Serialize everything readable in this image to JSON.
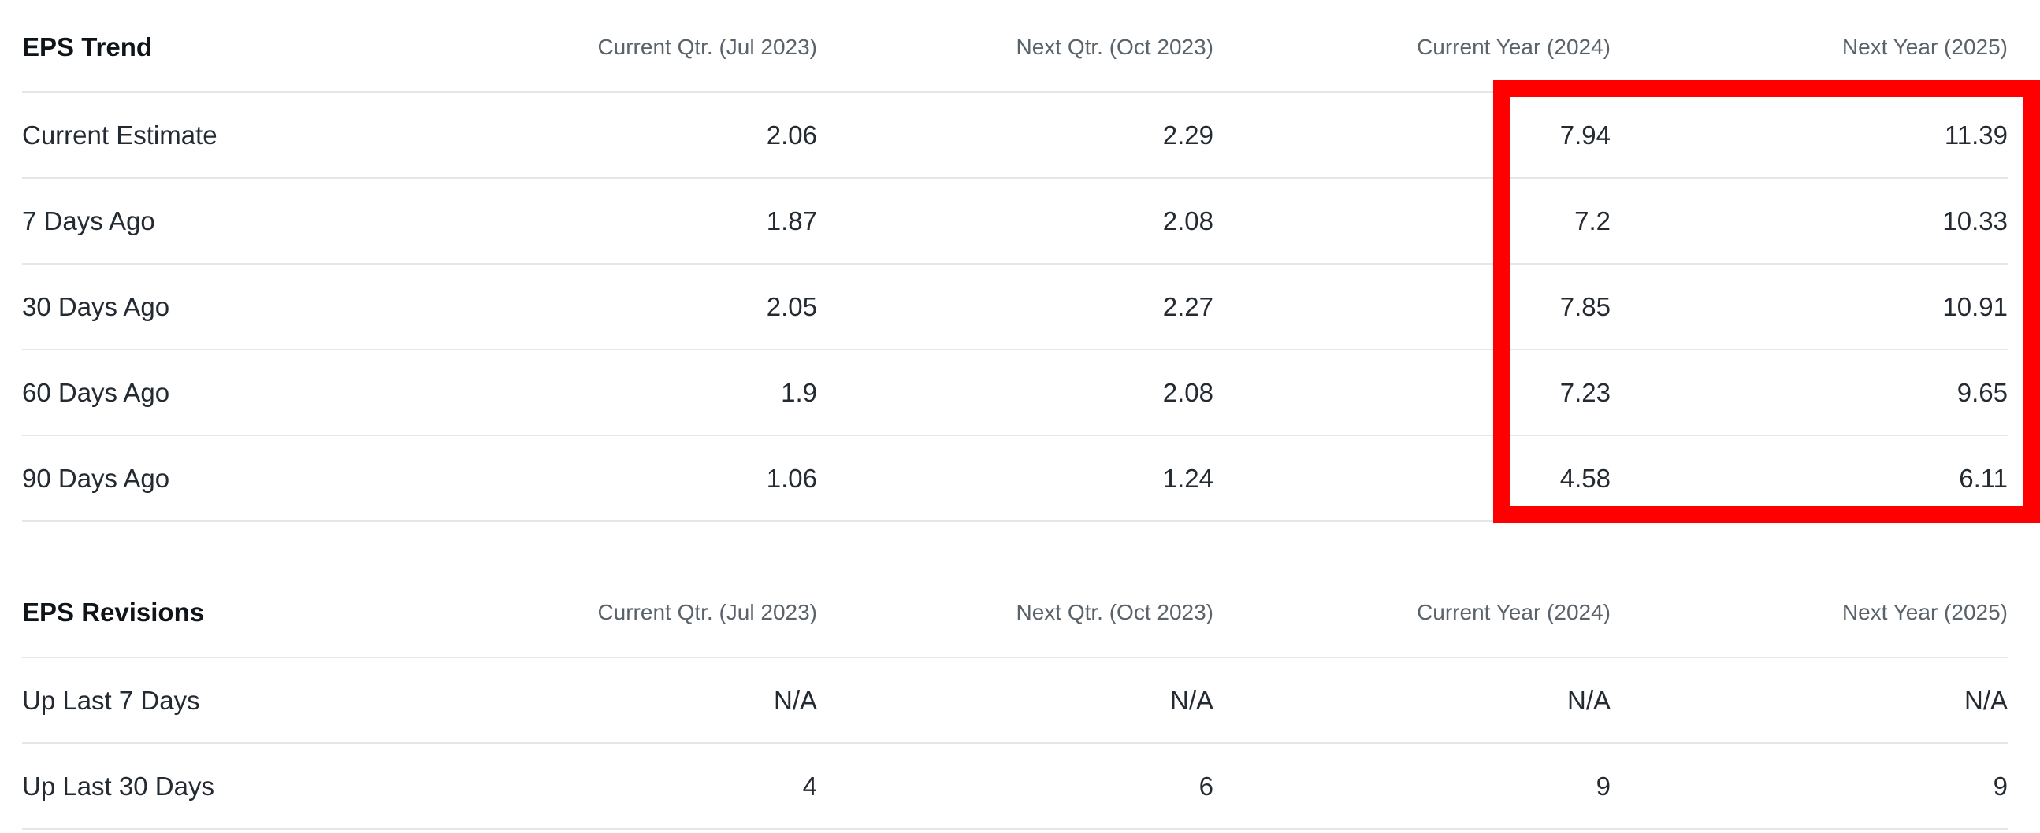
{
  "eps_trend": {
    "title": "EPS Trend",
    "columns": [
      "Current Qtr. (Jul 2023)",
      "Next Qtr. (Oct 2023)",
      "Current Year (2024)",
      "Next Year (2025)"
    ],
    "rows": [
      {
        "label": "Current Estimate",
        "values": [
          "2.06",
          "2.29",
          "7.94",
          "11.39"
        ]
      },
      {
        "label": "7 Days Ago",
        "values": [
          "1.87",
          "2.08",
          "7.2",
          "10.33"
        ]
      },
      {
        "label": "30 Days Ago",
        "values": [
          "2.05",
          "2.27",
          "7.85",
          "10.91"
        ]
      },
      {
        "label": "60 Days Ago",
        "values": [
          "1.9",
          "2.08",
          "7.23",
          "9.65"
        ]
      },
      {
        "label": "90 Days Ago",
        "values": [
          "1.06",
          "1.24",
          "4.58",
          "6.11"
        ]
      }
    ]
  },
  "eps_revisions": {
    "title": "EPS Revisions",
    "columns": [
      "Current Qtr. (Jul 2023)",
      "Next Qtr. (Oct 2023)",
      "Current Year (2024)",
      "Next Year (2025)"
    ],
    "rows": [
      {
        "label": "Up Last 7 Days",
        "values": [
          "N/A",
          "N/A",
          "N/A",
          "N/A"
        ]
      },
      {
        "label": "Up Last 30 Days",
        "values": [
          "4",
          "6",
          "9",
          "9"
        ]
      }
    ]
  },
  "annotation": {
    "highlight_color": "#ff0000",
    "highlighted_columns": [
      "Current Year (2024)",
      "Next Year (2025)"
    ]
  }
}
